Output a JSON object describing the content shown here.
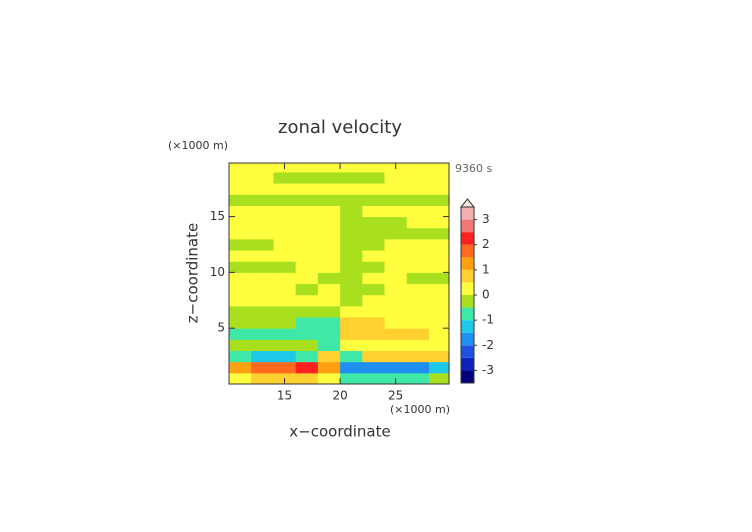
{
  "chart_data": {
    "type": "contour",
    "title": "zonal velocity",
    "x_label": "x−coordinate",
    "y_label": "z−coordinate",
    "x_unit": "(×1000 m)",
    "y_unit": "(×1000 m)",
    "time_label": "9360 s",
    "xlim": [
      10,
      29.8
    ],
    "ylim": [
      0,
      19.8
    ],
    "xticks": [
      15,
      20,
      25
    ],
    "yticks": [
      5,
      10,
      15
    ],
    "x": [
      11,
      13,
      15,
      17,
      19,
      21,
      23,
      25,
      27,
      29
    ],
    "y": [
      0.5,
      1.5,
      2.5,
      3.5,
      4.5,
      5.5,
      6.5,
      7.5,
      8.5,
      9.5,
      10.5,
      11.5,
      12.5,
      13.5,
      14.5,
      15.5,
      16.5,
      17.5,
      18.5,
      19.5
    ],
    "z": [
      [
        0.2,
        0.7,
        0.7,
        0.7,
        0.2,
        -0.7,
        -0.7,
        -0.7,
        -0.7,
        -0.2
      ],
      [
        1.2,
        1.7,
        1.7,
        2.2,
        1.2,
        -1.7,
        -1.8,
        -1.8,
        -1.8,
        -1.2
      ],
      [
        -0.7,
        -1.2,
        -1.2,
        -0.7,
        0.7,
        -0.7,
        0.7,
        0.7,
        0.7,
        0.7
      ],
      [
        -0.2,
        -0.2,
        -0.2,
        -0.2,
        -0.7,
        0.2,
        0.2,
        0.2,
        0.2,
        0.2
      ],
      [
        -0.7,
        -0.7,
        -0.7,
        -0.7,
        -0.7,
        0.7,
        0.7,
        0.7,
        0.7,
        0.2
      ],
      [
        -0.2,
        -0.2,
        -0.2,
        -0.7,
        -0.7,
        0.7,
        0.7,
        0.2,
        0.2,
        0.2
      ],
      [
        -0.2,
        -0.2,
        -0.2,
        -0.2,
        -0.2,
        0.2,
        0.2,
        0.2,
        0.2,
        0.2
      ],
      [
        0.2,
        0.2,
        0.2,
        0.2,
        0.2,
        -0.2,
        0.2,
        0.2,
        0.2,
        0.2
      ],
      [
        0.2,
        0.2,
        0.2,
        -0.2,
        0.2,
        -0.2,
        -0.2,
        0.2,
        0.2,
        0.2
      ],
      [
        0.2,
        0.2,
        0.2,
        0.2,
        -0.2,
        -0.2,
        0.2,
        0.2,
        -0.2,
        -0.2
      ],
      [
        -0.2,
        -0.2,
        -0.2,
        0.2,
        0.2,
        -0.2,
        -0.2,
        0.2,
        0.2,
        0.2
      ],
      [
        0.2,
        0.2,
        0.2,
        0.2,
        0.2,
        -0.2,
        0.2,
        0.2,
        0.2,
        0.2
      ],
      [
        -0.2,
        -0.2,
        0.2,
        0.2,
        0.2,
        -0.2,
        -0.2,
        0.2,
        0.2,
        0.2
      ],
      [
        0.2,
        0.2,
        0.2,
        0.2,
        0.2,
        -0.2,
        -0.2,
        -0.2,
        -0.2,
        -0.2
      ],
      [
        0.2,
        0.2,
        0.2,
        0.2,
        0.2,
        -0.2,
        -0.2,
        -0.2,
        0.2,
        0.2
      ],
      [
        0.2,
        0.2,
        0.2,
        0.2,
        0.2,
        -0.2,
        0.2,
        0.2,
        0.2,
        0.2
      ],
      [
        -0.2,
        -0.2,
        -0.2,
        -0.2,
        -0.2,
        -0.2,
        -0.2,
        -0.2,
        -0.2,
        -0.2
      ],
      [
        0.2,
        0.2,
        0.2,
        0.2,
        0.2,
        0.2,
        0.2,
        0.2,
        0.2,
        0.2
      ],
      [
        0.2,
        0.2,
        -0.2,
        -0.2,
        -0.2,
        -0.2,
        -0.2,
        0.2,
        0.2,
        0.2
      ],
      [
        0.2,
        0.2,
        0.2,
        0.2,
        0.2,
        0.2,
        0.2,
        0.2,
        0.2,
        0.2
      ]
    ],
    "levels": [
      -3.5,
      -3,
      -2.5,
      -2,
      -1.5,
      -1,
      -0.5,
      0,
      0.5,
      1,
      1.5,
      2,
      2.5,
      3,
      3.5
    ],
    "colors": [
      "#00007a",
      "#1020b8",
      "#2050e0",
      "#2090f0",
      "#20c8e8",
      "#40e8a8",
      "#a8e020",
      "#ffff40",
      "#ffd030",
      "#ffa010",
      "#ff6a20",
      "#ff2020",
      "#f07878",
      "#f4b0b0"
    ],
    "colorbar_ticks": [
      -3,
      -2,
      -1,
      0,
      1,
      2,
      3
    ],
    "extend": "max",
    "over_color": "#fbe4e4"
  }
}
